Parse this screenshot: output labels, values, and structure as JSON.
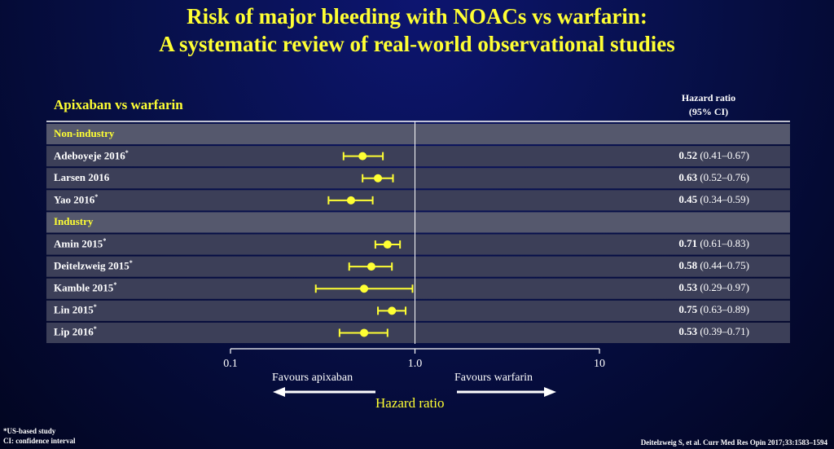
{
  "title_line1": "Risk of major bleeding with NOACs vs warfarin:",
  "title_line2": "A systematic review of real-world observational studies",
  "comparison": "Apixaban vs warfarin",
  "hr_header_line1": "Hazard ratio",
  "hr_header_line2": "(95% CI)",
  "footnote_line1": "*US-based study",
  "footnote_line2": "CI: confidence interval",
  "citation": "Deitelzweig S, et al. Curr Med Res Opin 2017;33:1583–1594",
  "colors": {
    "marker": "#ffff33",
    "row_bg": "#3c3f58",
    "header_bg": "#55586d",
    "title": "#ffff33"
  },
  "chart_data": {
    "type": "forest",
    "xscale": "log",
    "xlim": [
      0.1,
      10
    ],
    "xticks": [
      "0.1",
      "1.0",
      "10"
    ],
    "xtick_values": [
      0.1,
      1.0,
      10
    ],
    "reference_line": 1.0,
    "xlabel": "Hazard ratio",
    "favours_left": "Favours apixaban",
    "favours_right": "Favours warfarin",
    "rows": [
      {
        "kind": "group",
        "label": "Non-industry"
      },
      {
        "kind": "study",
        "label": "Adeboyeje 2016",
        "us": true,
        "hr": 0.52,
        "lo": 0.41,
        "hi": 0.67,
        "hr_text": "0.52",
        "ci_text": "(0.41–0.67)"
      },
      {
        "kind": "study",
        "label": "Larsen 2016",
        "us": false,
        "hr": 0.63,
        "lo": 0.52,
        "hi": 0.76,
        "hr_text": "0.63",
        "ci_text": "(0.52–0.76)"
      },
      {
        "kind": "study",
        "label": "Yao 2016",
        "us": true,
        "hr": 0.45,
        "lo": 0.34,
        "hi": 0.59,
        "hr_text": "0.45",
        "ci_text": "(0.34–0.59)"
      },
      {
        "kind": "group",
        "label": "Industry"
      },
      {
        "kind": "study",
        "label": "Amin 2015",
        "us": true,
        "hr": 0.71,
        "lo": 0.61,
        "hi": 0.83,
        "hr_text": "0.71",
        "ci_text": "(0.61–0.83)"
      },
      {
        "kind": "study",
        "label": "Deitelzweig 2015",
        "us": true,
        "hr": 0.58,
        "lo": 0.44,
        "hi": 0.75,
        "hr_text": "0.58",
        "ci_text": "(0.44–0.75)"
      },
      {
        "kind": "study",
        "label": "Kamble 2015",
        "us": true,
        "hr": 0.53,
        "lo": 0.29,
        "hi": 0.97,
        "hr_text": "0.53",
        "ci_text": "(0.29–0.97)"
      },
      {
        "kind": "study",
        "label": "Lin 2015",
        "us": true,
        "hr": 0.75,
        "lo": 0.63,
        "hi": 0.89,
        "hr_text": "0.75",
        "ci_text": "(0.63–0.89)"
      },
      {
        "kind": "study",
        "label": "Lip 2016",
        "us": true,
        "hr": 0.53,
        "lo": 0.39,
        "hi": 0.71,
        "hr_text": "0.53",
        "ci_text": "(0.39–0.71)"
      }
    ]
  }
}
